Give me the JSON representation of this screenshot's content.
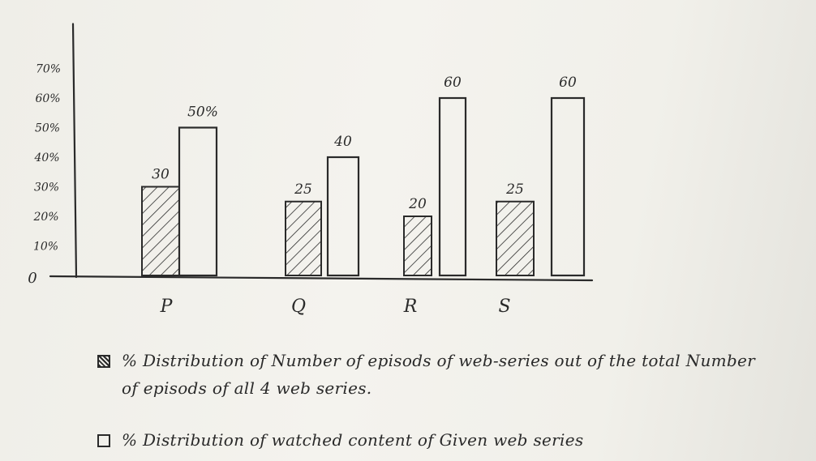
{
  "chart_data": {
    "type": "bar",
    "categories": [
      "P",
      "Q",
      "R",
      "S"
    ],
    "series": [
      {
        "name": "% Distribution of Number of episods of web-series out of the total Number of episods of all 4 web series.",
        "values": [
          30,
          25,
          20,
          25
        ],
        "data_labels": [
          "30",
          "25",
          "20",
          "25"
        ],
        "pattern": "hatched"
      },
      {
        "name": "% Distribution of watched content of Given web series",
        "values": [
          50,
          40,
          60,
          60
        ],
        "data_labels": [
          "50%",
          "40",
          "60",
          "60"
        ],
        "pattern": "empty"
      }
    ],
    "yticks": [
      "0",
      "10%",
      "20%",
      "30%",
      "40%",
      "50%",
      "60%",
      "70%"
    ],
    "ytick_values": [
      0,
      10,
      20,
      30,
      40,
      50,
      60,
      70
    ],
    "ylim": [
      0,
      70
    ],
    "grid": false,
    "legend_position": "bottom",
    "stroke_color": "#2a2a2a"
  }
}
